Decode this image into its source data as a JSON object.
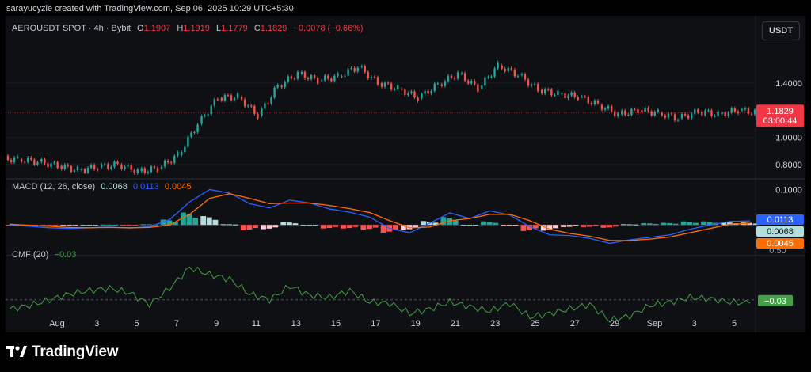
{
  "attribution": "sarayucyzie created with TradingView.com, Sep 06, 2025 10:29 UTC+5:30",
  "currency": "USDT",
  "brand": {
    "name": "TradingView"
  },
  "colors": {
    "up": "#26a69a",
    "down": "#ef5350",
    "macd_line": "#2962ff",
    "signal_line": "#ff6d00",
    "hist_pos_strong": "#26a69a",
    "hist_pos_weak": "#b2dfdb",
    "hist_neg_strong": "#ff5252",
    "hist_neg_weak": "#ffcdd2",
    "cmf_line": "#43a047",
    "price_label": "#f23645",
    "macd_label": "#2962ff",
    "signal_label": "#ff6d00"
  },
  "price_pane": {
    "legend": {
      "symbol": "AEROUSDT SPOT · 4h · Bybit",
      "o_label": "O",
      "o_value": "1.1907",
      "h_label": "H",
      "h_value": "1.1919",
      "l_label": "L",
      "l_value": "1.1779",
      "c_label": "C",
      "c_value": "1.1829",
      "change": "−0.0078 (−0.66%)"
    },
    "axis_ticks": [
      "1.4000",
      "1.0000",
      "0.8000"
    ],
    "last_price": "1.1829",
    "countdown": "03:00:44"
  },
  "macd_pane": {
    "legend": {
      "name": "MACD (12, 26, close)",
      "hist": "0.0068",
      "macd": "0.0113",
      "signal": "0.0045"
    },
    "axis_ticks": [
      "0.1000"
    ],
    "labels": {
      "macd": "0.0113",
      "hist": "0.0068",
      "signal": "0.0045"
    },
    "cut_tick": "0.50"
  },
  "cmf_pane": {
    "legend": {
      "name": "CMF (20)",
      "value": "−0.03"
    },
    "label": "−0.03"
  },
  "time_axis": [
    "Aug",
    "3",
    "5",
    "7",
    "9",
    "11",
    "13",
    "15",
    "17",
    "19",
    "21",
    "23",
    "25",
    "27",
    "29",
    "Sep",
    "3",
    "5"
  ],
  "chart_data": [
    {
      "type": "line",
      "title": "AEROUSDT SPOT · 4h · Bybit",
      "ylim": [
        0.7,
        1.75
      ],
      "y_ticks": [
        1.4,
        1.0,
        0.8
      ],
      "x_label_dates": [
        "Aug",
        "3",
        "5",
        "7",
        "9",
        "11",
        "13",
        "15",
        "17",
        "19",
        "21",
        "23",
        "25",
        "27",
        "29",
        "Sep",
        "3",
        "5"
      ],
      "x_range": [
        "Jul 31",
        "Sep 6"
      ],
      "last_close": 1.1829,
      "series": [
        {
          "x": [
            "Jul 31",
            "Aug 1",
            "Aug 2",
            "Aug 3",
            "Aug 4",
            "Aug 5",
            "Aug 6",
            "Aug 7",
            "Aug 8",
            "Aug 9",
            "Aug 10",
            "Aug 11",
            "Aug 12",
            "Aug 13",
            "Aug 14",
            "Aug 15",
            "Aug 16",
            "Aug 17",
            "Aug 18",
            "Aug 19",
            "Aug 20",
            "Aug 21",
            "Aug 22",
            "Aug 23",
            "Aug 24",
            "Aug 25",
            "Aug 26",
            "Aug 27",
            "Aug 28",
            "Aug 29",
            "Aug 30",
            "Aug 31",
            "Sep 1",
            "Sep 2",
            "Sep 3",
            "Sep 4",
            "Sep 5",
            "Sep 6"
          ],
          "close": [
            0.84,
            0.82,
            0.79,
            0.76,
            0.78,
            0.8,
            0.75,
            0.77,
            0.87,
            1.1,
            1.29,
            1.3,
            1.16,
            1.38,
            1.47,
            1.42,
            1.45,
            1.52,
            1.4,
            1.36,
            1.29,
            1.39,
            1.47,
            1.36,
            1.53,
            1.46,
            1.35,
            1.32,
            1.3,
            1.24,
            1.17,
            1.2,
            1.18,
            1.14,
            1.19,
            1.17,
            1.2,
            1.18
          ]
        }
      ]
    },
    {
      "type": "line",
      "title": "MACD (12, 26, close)",
      "ylim": [
        -0.08,
        0.11
      ],
      "y_ticks": [
        0.1
      ],
      "series": [
        {
          "name": "MACD",
          "values": [
            0.0,
            -0.004,
            -0.008,
            -0.01,
            -0.008,
            -0.006,
            -0.009,
            -0.005,
            0.015,
            0.065,
            0.1,
            0.09,
            0.06,
            0.048,
            0.07,
            0.062,
            0.045,
            0.036,
            0.022,
            -0.01,
            -0.022,
            0.005,
            0.034,
            0.018,
            0.04,
            0.028,
            -0.005,
            -0.028,
            -0.03,
            -0.038,
            -0.052,
            -0.042,
            -0.035,
            -0.028,
            -0.012,
            0.0,
            0.01,
            0.0113
          ]
        },
        {
          "name": "Signal",
          "values": [
            0.002,
            -0.001,
            -0.004,
            -0.007,
            -0.008,
            -0.007,
            -0.008,
            -0.007,
            0.0,
            0.03,
            0.075,
            0.088,
            0.075,
            0.06,
            0.062,
            0.062,
            0.055,
            0.046,
            0.035,
            0.012,
            -0.008,
            -0.006,
            0.012,
            0.018,
            0.03,
            0.03,
            0.012,
            -0.012,
            -0.024,
            -0.032,
            -0.044,
            -0.044,
            -0.04,
            -0.034,
            -0.022,
            -0.01,
            0.002,
            0.0045
          ]
        },
        {
          "name": "Histogram",
          "values": [
            -0.002,
            -0.003,
            -0.004,
            -0.003,
            0.0,
            0.001,
            -0.001,
            0.002,
            0.015,
            0.035,
            0.025,
            0.002,
            -0.015,
            -0.012,
            0.008,
            0.0,
            -0.01,
            -0.01,
            -0.013,
            -0.022,
            -0.014,
            0.011,
            0.022,
            0.0,
            0.01,
            -0.002,
            -0.017,
            -0.016,
            -0.006,
            -0.006,
            -0.008,
            0.002,
            0.005,
            0.006,
            0.01,
            0.01,
            0.008,
            0.0068
          ]
        }
      ]
    },
    {
      "type": "line",
      "title": "CMF (20)",
      "ylim": [
        -0.25,
        0.35
      ],
      "series": [
        {
          "name": "CMF",
          "values": [
            -0.08,
            -0.05,
            0.0,
            0.05,
            0.08,
            0.1,
            0.06,
            -0.04,
            0.1,
            0.28,
            0.22,
            0.18,
            0.05,
            0.0,
            0.12,
            0.04,
            0.02,
            0.08,
            -0.02,
            -0.03,
            -0.12,
            -0.08,
            -0.02,
            -0.06,
            -0.1,
            -0.03,
            -0.15,
            -0.12,
            -0.08,
            -0.04,
            -0.18,
            -0.14,
            -0.05,
            -0.02,
            0.02,
            0.01,
            -0.02,
            -0.03
          ]
        }
      ]
    }
  ]
}
